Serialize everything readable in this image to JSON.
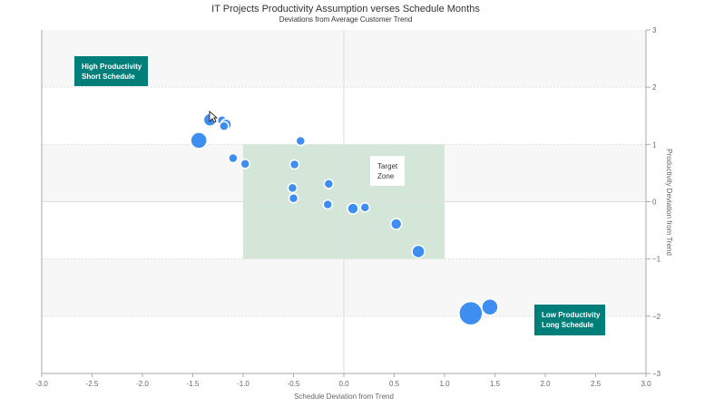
{
  "chart_data": {
    "type": "scatter",
    "title": "IT Projects Productivity Assumption verses Schedule Months",
    "subtitle": "Deviations from Average Customer Trend",
    "xlabel": "Schedule Deviation from Trend",
    "ylabel": "Productivity Deviation from Trend",
    "xlim": [
      -3.0,
      3.0
    ],
    "ylim": [
      -3,
      3
    ],
    "x_ticks": [
      "-3.0",
      "-2.5",
      "-2.0",
      "-1.5",
      "-1.0",
      "-0.5",
      "0.0",
      "0.5",
      "1.0",
      "1.5",
      "2.0",
      "2.5",
      "3.0"
    ],
    "y_ticks": [
      "3",
      "2",
      "1",
      "0",
      "-1",
      "-2",
      "-3"
    ],
    "y_axis_side": "right",
    "bands": "alternating light grey horizontal bands",
    "target_zone": {
      "x": [
        -1.0,
        1.0
      ],
      "y": [
        -1.0,
        1.0
      ],
      "label_lines": [
        "Target",
        "Zone"
      ],
      "color": "#d4e6d8"
    },
    "callouts": [
      {
        "lines": [
          "High Productivity",
          "Short Schedule"
        ],
        "position": "top-left"
      },
      {
        "lines": [
          "Low Productivity",
          "Long Schedule"
        ],
        "position": "bottom-right"
      }
    ],
    "point_color": "#3d8ef0",
    "callout_color": "#007f7a",
    "points": [
      {
        "x": -1.33,
        "y": 1.43,
        "size": 7
      },
      {
        "x": -1.21,
        "y": 1.42,
        "size": 5
      },
      {
        "x": -1.17,
        "y": 1.35,
        "size": 6
      },
      {
        "x": -1.19,
        "y": 1.32,
        "size": 5
      },
      {
        "x": -1.44,
        "y": 1.07,
        "size": 9
      },
      {
        "x": -0.43,
        "y": 1.06,
        "size": 5
      },
      {
        "x": -1.1,
        "y": 0.76,
        "size": 5
      },
      {
        "x": -0.98,
        "y": 0.66,
        "size": 5
      },
      {
        "x": -0.49,
        "y": 0.65,
        "size": 5
      },
      {
        "x": -0.15,
        "y": 0.31,
        "size": 5
      },
      {
        "x": -0.51,
        "y": 0.24,
        "size": 5
      },
      {
        "x": -0.5,
        "y": 0.06,
        "size": 5
      },
      {
        "x": -0.16,
        "y": -0.05,
        "size": 5
      },
      {
        "x": 0.09,
        "y": -0.12,
        "size": 6
      },
      {
        "x": 0.21,
        "y": -0.1,
        "size": 5
      },
      {
        "x": 0.52,
        "y": -0.39,
        "size": 6
      },
      {
        "x": 0.74,
        "y": -0.87,
        "size": 7
      },
      {
        "x": 1.45,
        "y": -1.84,
        "size": 9
      },
      {
        "x": 1.26,
        "y": -1.95,
        "size": 13
      }
    ]
  }
}
